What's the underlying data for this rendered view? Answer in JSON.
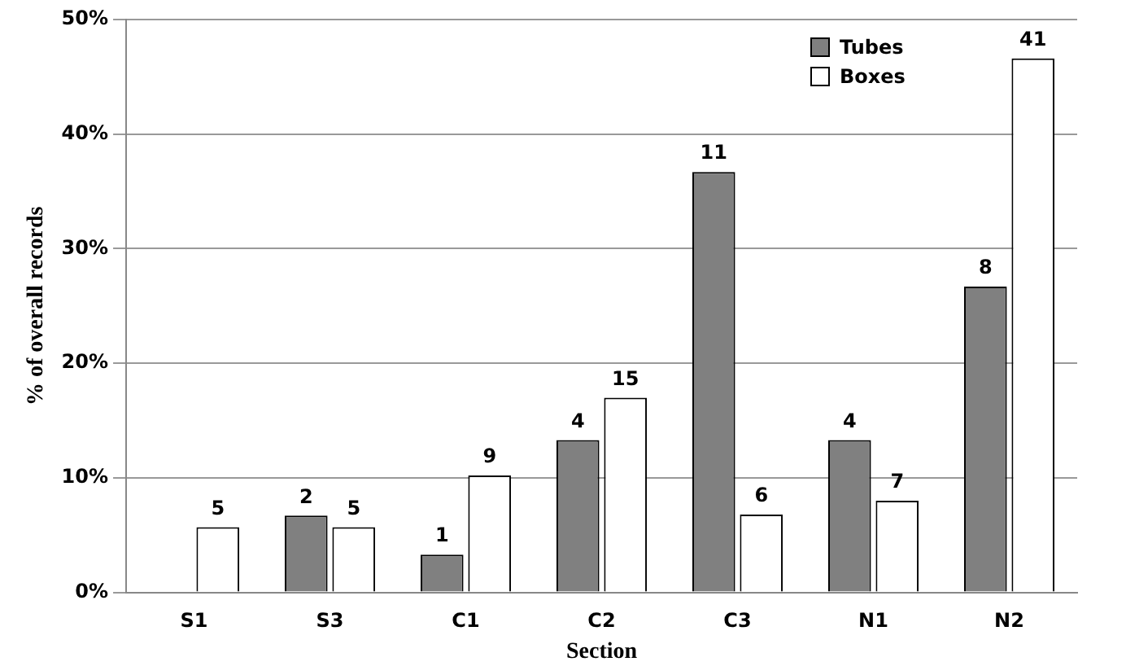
{
  "chart_data": {
    "type": "bar",
    "xlabel": "Section",
    "ylabel": "% of overall records",
    "categories": [
      "S1",
      "S3",
      "C1",
      "C2",
      "C3",
      "N1",
      "N2"
    ],
    "series": [
      {
        "name": "Tubes",
        "color": "#808080",
        "values": [
          null,
          6.7,
          3.3,
          13.3,
          36.7,
          13.3,
          26.7
        ]
      },
      {
        "name": "Boxes",
        "color": "#ffffff",
        "values": [
          5.7,
          5.7,
          10.2,
          17.0,
          6.8,
          8.0,
          46.6
        ]
      }
    ],
    "annotations": [
      {
        "text": "2",
        "x": "S3",
        "y": 6.7
      },
      {
        "text": "1",
        "x": "C1",
        "y": 3.3
      },
      {
        "text": "4",
        "x": "C2",
        "y": 13.3
      },
      {
        "text": "11",
        "x": "C3",
        "y": 36.7
      },
      {
        "text": "4",
        "x": "N1",
        "y": 13.3
      },
      {
        "text": "8",
        "x": "N2",
        "y": 26.7
      },
      {
        "text": "5",
        "x": "S1",
        "y": 5.7
      },
      {
        "text": "5",
        "x": "S3",
        "y": 5.7
      },
      {
        "text": "9",
        "x": "C1",
        "y": 10.2
      },
      {
        "text": "15",
        "x": "C2",
        "y": 17.0
      },
      {
        "text": "6",
        "x": "C3",
        "y": 6.8
      },
      {
        "text": "7",
        "x": "N1",
        "y": 8.0
      },
      {
        "text": "41",
        "x": "N2",
        "y": 46.6
      }
    ],
    "ylim": [
      0,
      50
    ],
    "yticks": [
      {
        "value": 0,
        "label": "0%"
      },
      {
        "value": 10,
        "label": "10%"
      },
      {
        "value": 20,
        "label": "20%"
      },
      {
        "value": 30,
        "label": "30%"
      },
      {
        "value": 40,
        "label": "40%"
      },
      {
        "value": 50,
        "label": "50%"
      }
    ],
    "grid": "y",
    "legend": "top right"
  }
}
